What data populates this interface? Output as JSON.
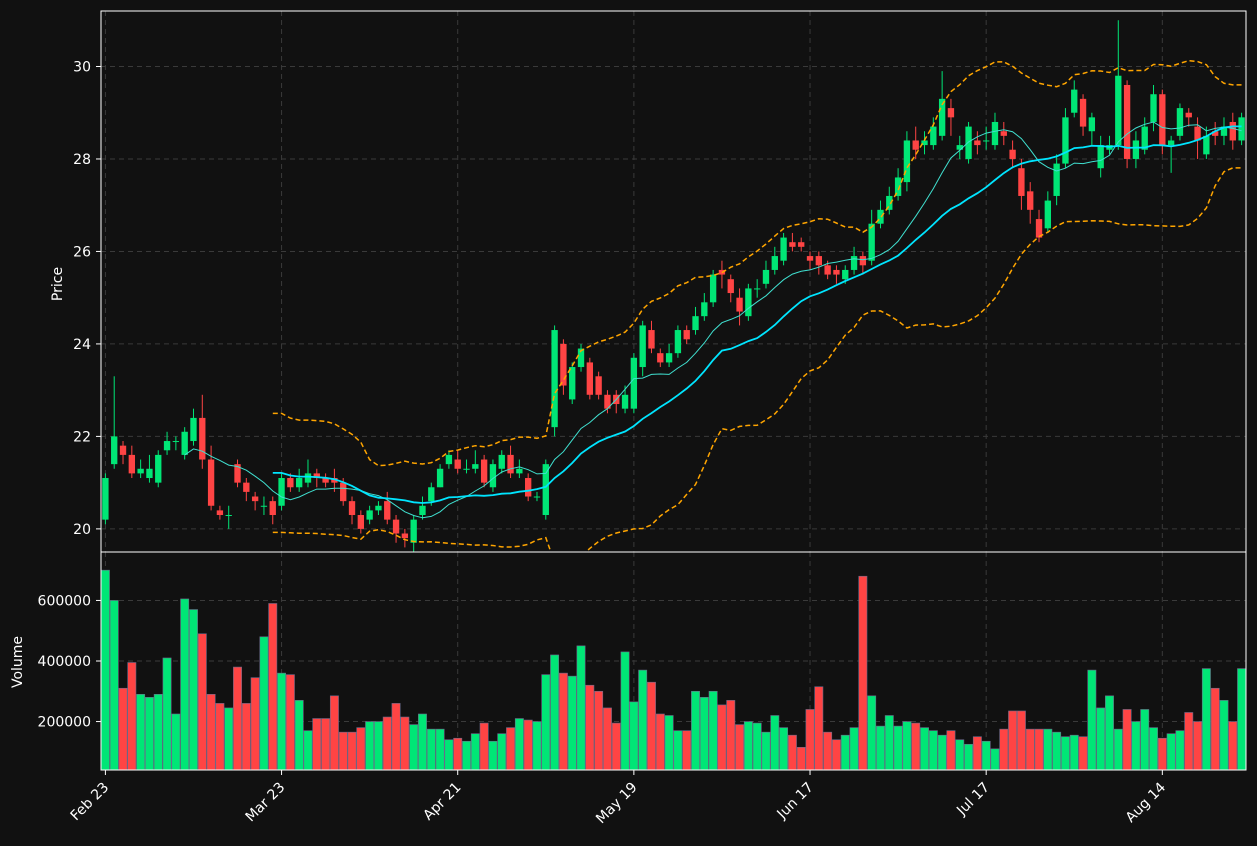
{
  "chart_data": {
    "type": "candlestick",
    "colors": {
      "background": "#111111",
      "up": "#00e676",
      "down": "#ff4444",
      "sma_fast": "#40e0d0",
      "sma_slow": "#00e5ff",
      "bollinger": "#ffa500",
      "grid": "#3a3a3a",
      "axis": "#ffffff"
    },
    "price_panel": {
      "ylabel": "Price",
      "ylim": [
        19.5,
        31.2
      ],
      "yticks": [
        20,
        22,
        24,
        26,
        28,
        30
      ],
      "grid": true
    },
    "volume_panel": {
      "ylabel": "Volume",
      "ylim": [
        40000,
        760000
      ],
      "yticks": [
        200000,
        400000,
        600000
      ],
      "grid": true
    },
    "x_ticks": [
      {
        "index": 0,
        "label": "Feb 23"
      },
      {
        "index": 20,
        "label": "Mar 23"
      },
      {
        "index": 40,
        "label": "Apr 21"
      },
      {
        "index": 60,
        "label": "May 19"
      },
      {
        "index": 80,
        "label": "Jun 17"
      },
      {
        "index": 100,
        "label": "Jul 17"
      },
      {
        "index": 120,
        "label": "Aug 14"
      }
    ],
    "candles": [
      [
        20.2,
        21.1,
        20.1,
        21.2,
        700000
      ],
      [
        21.4,
        22.0,
        21.3,
        23.3,
        600000
      ],
      [
        21.8,
        21.6,
        21.4,
        21.9,
        310000
      ],
      [
        21.6,
        21.2,
        21.1,
        21.8,
        395000
      ],
      [
        21.2,
        21.3,
        21.1,
        21.5,
        290000
      ],
      [
        21.1,
        21.3,
        21.0,
        21.6,
        280000
      ],
      [
        21.0,
        21.6,
        20.9,
        21.7,
        290000
      ],
      [
        21.7,
        21.9,
        21.6,
        22.1,
        410000
      ],
      [
        21.9,
        21.9,
        21.7,
        22.0,
        225000
      ],
      [
        21.6,
        22.1,
        21.5,
        22.2,
        605000
      ],
      [
        21.9,
        22.4,
        21.8,
        22.6,
        570000
      ],
      [
        22.4,
        21.5,
        21.3,
        22.9,
        490000
      ],
      [
        21.5,
        20.5,
        20.4,
        21.8,
        290000
      ],
      [
        20.4,
        20.3,
        20.2,
        20.5,
        260000
      ],
      [
        20.3,
        20.3,
        20.0,
        20.5,
        245000
      ],
      [
        21.4,
        21.0,
        20.9,
        21.5,
        380000
      ],
      [
        21.0,
        20.8,
        20.6,
        21.1,
        260000
      ],
      [
        20.7,
        20.6,
        20.4,
        20.8,
        345000
      ],
      [
        20.5,
        20.5,
        20.3,
        20.7,
        480000
      ],
      [
        20.6,
        20.3,
        20.1,
        20.7,
        590000
      ],
      [
        20.5,
        21.1,
        20.4,
        21.2,
        360000
      ],
      [
        21.1,
        20.9,
        20.8,
        21.2,
        355000
      ],
      [
        20.9,
        21.1,
        20.8,
        21.3,
        270000
      ],
      [
        21.0,
        21.2,
        20.9,
        21.5,
        170000
      ],
      [
        21.2,
        21.1,
        20.9,
        21.3,
        210000
      ],
      [
        21.1,
        21.0,
        20.9,
        21.2,
        210000
      ],
      [
        21.1,
        21.0,
        20.8,
        21.3,
        285000
      ],
      [
        21.0,
        20.6,
        20.5,
        21.1,
        165000
      ],
      [
        20.6,
        20.3,
        20.1,
        20.7,
        165000
      ],
      [
        20.3,
        20.0,
        19.9,
        20.4,
        180000
      ],
      [
        20.2,
        20.4,
        20.1,
        20.5,
        200000
      ],
      [
        20.4,
        20.5,
        20.3,
        20.6,
        200000
      ],
      [
        20.6,
        20.2,
        20.1,
        20.8,
        215000
      ],
      [
        20.2,
        19.9,
        19.7,
        20.3,
        260000
      ],
      [
        19.9,
        19.8,
        19.6,
        20.0,
        215000
      ],
      [
        19.7,
        20.2,
        19.5,
        20.3,
        190000
      ],
      [
        20.3,
        20.5,
        20.2,
        20.7,
        225000
      ],
      [
        20.6,
        20.9,
        20.5,
        21.0,
        175000
      ],
      [
        20.9,
        21.3,
        20.9,
        21.4,
        175000
      ],
      [
        21.4,
        21.6,
        21.3,
        21.7,
        140000
      ],
      [
        21.5,
        21.3,
        21.2,
        21.7,
        145000
      ],
      [
        21.3,
        21.3,
        21.2,
        21.5,
        135000
      ],
      [
        21.3,
        21.4,
        21.2,
        21.7,
        160000
      ],
      [
        21.5,
        21.0,
        20.9,
        21.6,
        195000
      ],
      [
        20.9,
        21.4,
        20.8,
        21.5,
        135000
      ],
      [
        21.3,
        21.6,
        21.2,
        21.7,
        160000
      ],
      [
        21.6,
        21.2,
        21.1,
        21.8,
        180000
      ],
      [
        21.2,
        21.3,
        21.1,
        21.5,
        210000
      ],
      [
        21.1,
        20.7,
        20.6,
        21.2,
        205000
      ],
      [
        20.7,
        20.7,
        20.6,
        20.8,
        200000
      ],
      [
        20.3,
        21.4,
        20.2,
        21.5,
        355000
      ],
      [
        22.2,
        24.3,
        22.0,
        24.4,
        420000
      ],
      [
        24.0,
        23.1,
        22.9,
        24.1,
        360000
      ],
      [
        22.8,
        23.5,
        22.7,
        23.6,
        350000
      ],
      [
        23.5,
        23.9,
        23.4,
        24.0,
        450000
      ],
      [
        23.6,
        22.9,
        22.8,
        23.7,
        320000
      ],
      [
        23.3,
        22.9,
        22.8,
        23.4,
        300000
      ],
      [
        22.9,
        22.6,
        22.5,
        23.0,
        245000
      ],
      [
        22.9,
        22.7,
        22.5,
        23.0,
        195000
      ],
      [
        22.6,
        22.9,
        22.5,
        23.1,
        430000
      ],
      [
        22.6,
        23.7,
        22.5,
        23.8,
        265000
      ],
      [
        23.5,
        24.4,
        23.3,
        24.5,
        370000
      ],
      [
        24.3,
        23.9,
        23.8,
        24.5,
        330000
      ],
      [
        23.8,
        23.6,
        23.5,
        23.9,
        225000
      ],
      [
        23.6,
        23.8,
        23.5,
        24.0,
        220000
      ],
      [
        23.8,
        24.3,
        23.7,
        24.4,
        170000
      ],
      [
        24.3,
        24.1,
        24.0,
        24.4,
        170000
      ],
      [
        24.3,
        24.6,
        24.2,
        24.8,
        300000
      ],
      [
        24.6,
        24.9,
        24.5,
        25.1,
        280000
      ],
      [
        24.9,
        25.5,
        24.8,
        25.6,
        300000
      ],
      [
        25.6,
        25.5,
        25.2,
        25.8,
        255000
      ],
      [
        25.4,
        25.1,
        24.9,
        25.5,
        270000
      ],
      [
        25.0,
        24.7,
        24.4,
        25.2,
        190000
      ],
      [
        24.6,
        25.2,
        24.5,
        25.3,
        200000
      ],
      [
        25.2,
        25.2,
        25.0,
        25.4,
        195000
      ],
      [
        25.3,
        25.6,
        25.2,
        25.8,
        165000
      ],
      [
        25.6,
        25.9,
        25.5,
        26.1,
        220000
      ],
      [
        25.8,
        26.3,
        25.7,
        26.4,
        180000
      ],
      [
        26.2,
        26.1,
        26.0,
        26.4,
        155000
      ],
      [
        26.2,
        26.1,
        26.0,
        26.3,
        115000
      ],
      [
        25.9,
        25.8,
        25.6,
        26.0,
        240000
      ],
      [
        25.9,
        25.7,
        25.5,
        26.0,
        315000
      ],
      [
        25.7,
        25.5,
        25.4,
        25.8,
        165000
      ],
      [
        25.6,
        25.5,
        25.3,
        25.7,
        140000
      ],
      [
        25.4,
        25.6,
        25.3,
        25.7,
        155000
      ],
      [
        25.6,
        25.9,
        25.5,
        26.1,
        180000
      ],
      [
        25.9,
        25.7,
        25.5,
        26.0,
        680000
      ],
      [
        25.8,
        26.6,
        25.7,
        26.9,
        285000
      ],
      [
        26.6,
        26.9,
        26.5,
        27.1,
        185000
      ],
      [
        26.9,
        27.2,
        26.8,
        27.4,
        220000
      ],
      [
        27.2,
        27.6,
        27.1,
        27.8,
        185000
      ],
      [
        27.5,
        28.4,
        27.3,
        28.6,
        200000
      ],
      [
        28.4,
        28.2,
        28.0,
        28.7,
        195000
      ],
      [
        28.3,
        28.4,
        28.1,
        28.6,
        180000
      ],
      [
        28.3,
        28.7,
        28.2,
        28.9,
        170000
      ],
      [
        28.5,
        29.3,
        28.4,
        29.9,
        155000
      ],
      [
        29.1,
        28.9,
        28.5,
        29.3,
        170000
      ],
      [
        28.2,
        28.3,
        28.0,
        28.5,
        140000
      ],
      [
        28.0,
        28.7,
        27.9,
        28.8,
        125000
      ],
      [
        28.4,
        28.3,
        28.1,
        28.6,
        150000
      ],
      [
        28.4,
        28.4,
        28.2,
        28.7,
        135000
      ],
      [
        28.3,
        28.8,
        28.2,
        29.0,
        110000
      ],
      [
        28.6,
        28.5,
        28.3,
        28.8,
        175000
      ],
      [
        28.2,
        28.0,
        27.8,
        28.4,
        235000
      ],
      [
        27.8,
        27.2,
        26.9,
        28.0,
        235000
      ],
      [
        27.3,
        26.9,
        26.6,
        27.5,
        175000
      ],
      [
        26.7,
        26.3,
        26.2,
        26.9,
        175000
      ],
      [
        26.5,
        27.1,
        26.4,
        27.3,
        175000
      ],
      [
        27.2,
        27.9,
        27.0,
        28.1,
        165000
      ],
      [
        27.9,
        28.9,
        27.8,
        29.1,
        150000
      ],
      [
        29.0,
        29.5,
        28.9,
        29.7,
        155000
      ],
      [
        29.3,
        28.7,
        28.5,
        29.4,
        150000
      ],
      [
        28.6,
        28.9,
        28.3,
        29.0,
        370000
      ],
      [
        27.8,
        28.3,
        27.6,
        28.5,
        245000
      ],
      [
        28.2,
        28.3,
        28.1,
        28.5,
        285000
      ],
      [
        28.3,
        29.8,
        28.2,
        31.0,
        175000
      ],
      [
        29.6,
        28.0,
        27.8,
        29.7,
        240000
      ],
      [
        28.0,
        28.4,
        27.8,
        28.6,
        200000
      ],
      [
        28.2,
        28.7,
        28.1,
        28.9,
        240000
      ],
      [
        28.8,
        29.4,
        28.6,
        29.6,
        180000
      ],
      [
        29.4,
        28.3,
        28.1,
        29.5,
        145000
      ],
      [
        28.3,
        28.4,
        27.7,
        28.5,
        160000
      ],
      [
        28.5,
        29.1,
        28.4,
        29.2,
        170000
      ],
      [
        29.0,
        28.9,
        28.7,
        29.1,
        230000
      ],
      [
        28.7,
        28.4,
        28.0,
        28.9,
        200000
      ],
      [
        28.1,
        28.5,
        28.0,
        28.7,
        375000
      ],
      [
        28.6,
        28.5,
        28.3,
        28.8,
        310000
      ],
      [
        28.5,
        28.7,
        28.3,
        28.9,
        270000
      ],
      [
        28.8,
        28.4,
        28.2,
        29.0,
        200000
      ],
      [
        28.4,
        28.9,
        28.3,
        29.0,
        375000
      ]
    ]
  }
}
